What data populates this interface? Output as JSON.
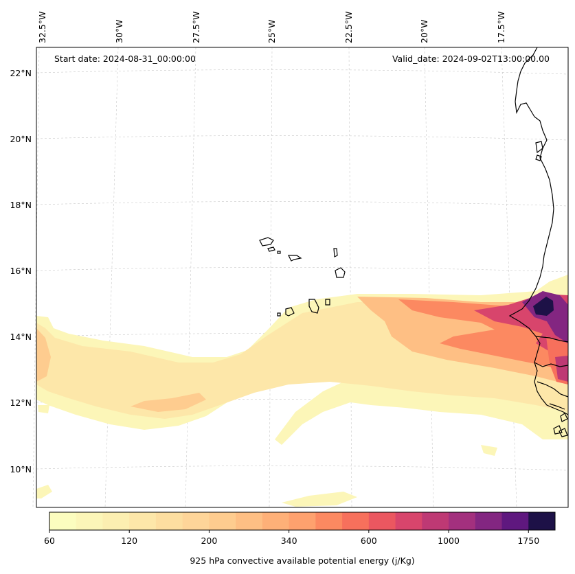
{
  "map": {
    "start_date": "Start date: 2024-08-31_00:00:00",
    "valid_date": "Valid_date: 2024-09-02T13:00:00.00",
    "lon_labels": [
      "32.5°W",
      "30°W",
      "27.5°W",
      "25°W",
      "22.5°W",
      "20°W",
      "17.5°W"
    ],
    "lat_labels": [
      "22°N",
      "20°N",
      "18°N",
      "16°N",
      "14°N",
      "12°N",
      "10°N"
    ],
    "grid": true,
    "colors": {
      "background": "#ffffff",
      "coastline": "#000000",
      "grid": "#bbbbbb"
    }
  },
  "colorbar": {
    "label": "925 hPa convective available potential energy (j/Kg)",
    "tick_labels": [
      "60",
      "120",
      "200",
      "340",
      "600",
      "1000",
      "1750"
    ],
    "colors": [
      "#fcfdbf",
      "#fcf6b8",
      "#fcefb1",
      "#fde7a9",
      "#fddea0",
      "#fed599",
      "#fecc8f",
      "#febf84",
      "#feb078",
      "#fea16e",
      "#fc8961",
      "#f7705c",
      "#eb5760",
      "#d8456c",
      "#be3974",
      "#a3307e",
      "#832681",
      "#5f187f",
      "#1d1147"
    ]
  }
}
